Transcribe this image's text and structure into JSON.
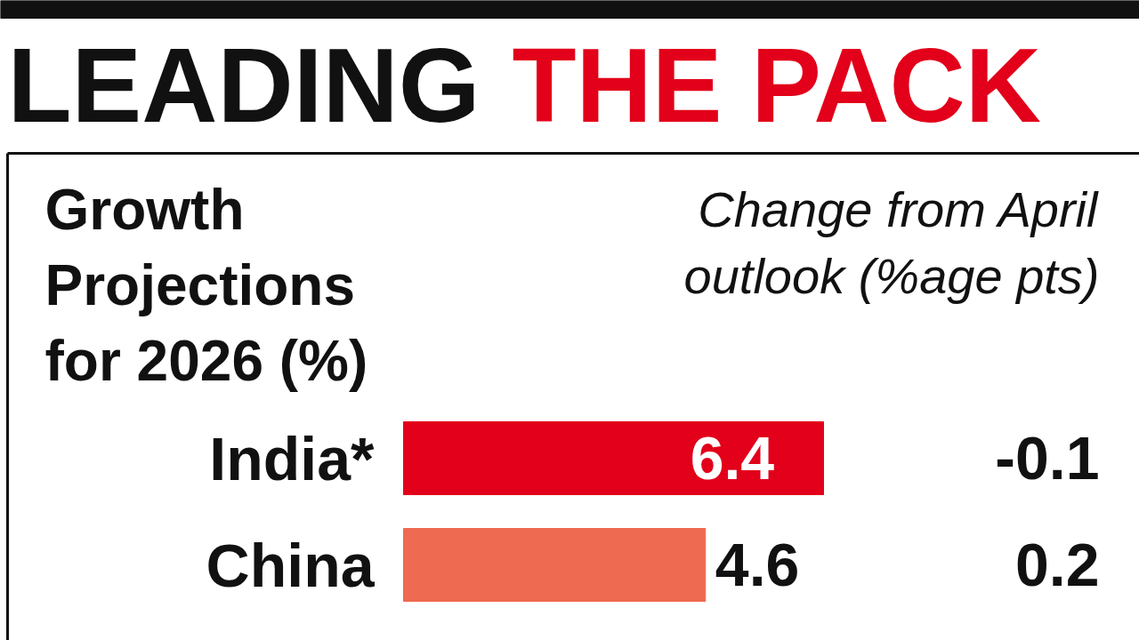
{
  "chart_data": {
    "type": "bar",
    "orientation": "horizontal",
    "title": "LEADING THE PACK",
    "subtitle": "Growth Projections for 2026 (%)",
    "annotations": [
      "Change from April outlook (%age pts)",
      "-0.1",
      "0.2"
    ],
    "categories": [
      "India*",
      "China"
    ],
    "values": [
      6.4,
      4.6
    ],
    "colors": [
      "#e2001a",
      "#ee6a50"
    ],
    "data_labels": true
  }
}
